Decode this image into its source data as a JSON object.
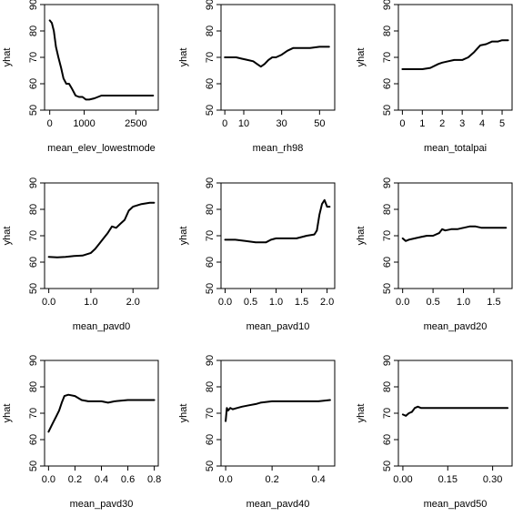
{
  "chart_data": [
    {
      "type": "line",
      "xlabel": "mean_elev_lowestmode",
      "ylabel": "yhat",
      "xlim": [
        -150,
        3150
      ],
      "ylim": [
        50,
        90
      ],
      "xticks": [
        0,
        1000,
        2500
      ],
      "yticks": [
        50,
        60,
        70,
        80,
        90
      ],
      "grid": false,
      "series": [
        {
          "x": [
            0,
            60,
            120,
            180,
            250,
            330,
            400,
            480,
            560,
            650,
            750,
            850,
            950,
            1050,
            1150,
            1300,
            1500,
            1800,
            2200,
            2600,
            3000
          ],
          "y": [
            84,
            83,
            80,
            74,
            70,
            66,
            62,
            60,
            60,
            58,
            55.5,
            55,
            55,
            54,
            54,
            54.5,
            55.5,
            55.5,
            55.5,
            55.5,
            55.5
          ]
        }
      ]
    },
    {
      "type": "line",
      "xlabel": "mean_rh98",
      "ylabel": "yhat",
      "xlim": [
        -2,
        58
      ],
      "ylim": [
        50,
        90
      ],
      "xticks": [
        0,
        10,
        30,
        50
      ],
      "yticks": [
        50,
        60,
        70,
        80,
        90
      ],
      "grid": false,
      "series": [
        {
          "x": [
            0,
            3,
            6,
            9,
            12,
            15,
            17,
            19,
            21,
            23,
            25,
            27,
            30,
            33,
            36,
            40,
            45,
            50,
            55
          ],
          "y": [
            70,
            70,
            70,
            69.5,
            69,
            68.5,
            67.5,
            66.5,
            67.5,
            69,
            70,
            70,
            71,
            72.5,
            73.5,
            73.5,
            73.5,
            74,
            74
          ]
        }
      ]
    },
    {
      "type": "line",
      "xlabel": "mean_totalpai",
      "ylabel": "yhat",
      "xlim": [
        -0.2,
        5.5
      ],
      "ylim": [
        50,
        90
      ],
      "xticks": [
        0,
        1,
        2,
        3,
        4,
        5
      ],
      "yticks": [
        50,
        60,
        70,
        80,
        90
      ],
      "grid": false,
      "series": [
        {
          "x": [
            0,
            0.3,
            0.6,
            1.0,
            1.4,
            1.8,
            2.0,
            2.3,
            2.6,
            3.0,
            3.3,
            3.6,
            3.9,
            4.2,
            4.5,
            4.8,
            5.0,
            5.3
          ],
          "y": [
            65.5,
            65.5,
            65.5,
            65.5,
            66,
            67.5,
            68,
            68.5,
            69,
            69,
            70,
            72,
            74.5,
            75,
            76,
            76,
            76.5,
            76.5
          ]
        }
      ]
    },
    {
      "type": "line",
      "xlabel": "mean_pavd0",
      "ylabel": "yhat",
      "xlim": [
        -0.1,
        2.6
      ],
      "ylim": [
        50,
        90
      ],
      "xticks": [
        0.0,
        1.0,
        2.0
      ],
      "xtick_labels": [
        "0.0",
        "1.0",
        "2.0"
      ],
      "yticks": [
        50,
        60,
        70,
        80,
        90
      ],
      "grid": false,
      "series": [
        {
          "x": [
            0,
            0.2,
            0.4,
            0.6,
            0.8,
            1.0,
            1.1,
            1.2,
            1.3,
            1.4,
            1.5,
            1.6,
            1.7,
            1.8,
            1.9,
            2.0,
            2.2,
            2.4,
            2.5
          ],
          "y": [
            62,
            61.8,
            62,
            62.3,
            62.5,
            63.5,
            65,
            67,
            69,
            71,
            73.5,
            73,
            74.5,
            76,
            79.5,
            81,
            82,
            82.5,
            82.5
          ]
        }
      ]
    },
    {
      "type": "line",
      "xlabel": "mean_pavd10",
      "ylabel": "yhat",
      "xlim": [
        -0.08,
        2.15
      ],
      "ylim": [
        50,
        90
      ],
      "xticks": [
        0.0,
        0.5,
        1.0,
        1.5,
        2.0
      ],
      "xtick_labels": [
        "0.0",
        "0.5",
        "1.0",
        "1.5",
        "2.0"
      ],
      "yticks": [
        50,
        60,
        70,
        80,
        90
      ],
      "grid": false,
      "series": [
        {
          "x": [
            0,
            0.2,
            0.4,
            0.6,
            0.8,
            0.9,
            1.0,
            1.2,
            1.4,
            1.6,
            1.75,
            1.8,
            1.85,
            1.9,
            1.95,
            2.0,
            2.05
          ],
          "y": [
            68.5,
            68.5,
            68,
            67.5,
            67.5,
            68.5,
            69,
            69,
            69,
            70,
            70.5,
            72,
            78,
            82,
            83.5,
            81,
            81
          ]
        }
      ]
    },
    {
      "type": "line",
      "xlabel": "mean_pavd20",
      "ylabel": "yhat",
      "xlim": [
        -0.07,
        1.8
      ],
      "ylim": [
        50,
        90
      ],
      "xticks": [
        0.0,
        0.5,
        1.0,
        1.5
      ],
      "xtick_labels": [
        "0.0",
        "0.5",
        "1.0",
        "1.5"
      ],
      "yticks": [
        50,
        60,
        70,
        80,
        90
      ],
      "grid": false,
      "series": [
        {
          "x": [
            0,
            0.05,
            0.1,
            0.2,
            0.3,
            0.4,
            0.5,
            0.6,
            0.65,
            0.7,
            0.8,
            0.9,
            1.0,
            1.1,
            1.2,
            1.3,
            1.5,
            1.7
          ],
          "y": [
            69,
            68,
            68.5,
            69,
            69.5,
            70,
            70,
            71,
            72.5,
            72,
            72.5,
            72.5,
            73,
            73.5,
            73.5,
            73,
            73,
            73
          ]
        }
      ]
    },
    {
      "type": "line",
      "xlabel": "mean_pavd30",
      "ylabel": "yhat",
      "xlim": [
        -0.03,
        0.83
      ],
      "ylim": [
        50,
        90
      ],
      "xticks": [
        0.0,
        0.2,
        0.4,
        0.6,
        0.8
      ],
      "xtick_labels": [
        "0.0",
        "0.2",
        "0.4",
        "0.6",
        "0.8"
      ],
      "yticks": [
        50,
        60,
        70,
        80,
        90
      ],
      "grid": false,
      "series": [
        {
          "x": [
            0,
            0.03,
            0.06,
            0.08,
            0.1,
            0.12,
            0.15,
            0.2,
            0.25,
            0.3,
            0.35,
            0.4,
            0.45,
            0.5,
            0.6,
            0.7,
            0.8
          ],
          "y": [
            63,
            66,
            69,
            71,
            74,
            76.5,
            77,
            76.5,
            75,
            74.5,
            74.5,
            74.5,
            74,
            74.5,
            75,
            75,
            75
          ]
        }
      ]
    },
    {
      "type": "line",
      "xlabel": "mean_pavd40",
      "ylabel": "yhat",
      "xlim": [
        -0.02,
        0.47
      ],
      "ylim": [
        50,
        90
      ],
      "xticks": [
        0.0,
        0.2,
        0.4
      ],
      "xtick_labels": [
        "0.0",
        "0.2",
        "0.4"
      ],
      "yticks": [
        50,
        60,
        70,
        80,
        90
      ],
      "grid": false,
      "series": [
        {
          "x": [
            0,
            0.005,
            0.01,
            0.02,
            0.03,
            0.05,
            0.07,
            0.1,
            0.13,
            0.15,
            0.2,
            0.25,
            0.3,
            0.35,
            0.4,
            0.45
          ],
          "y": [
            67,
            72,
            71,
            72,
            71.5,
            72,
            72.5,
            73,
            73.5,
            74,
            74.5,
            74.5,
            74.5,
            74.5,
            74.5,
            75
          ]
        }
      ]
    },
    {
      "type": "line",
      "xlabel": "mean_pavd50",
      "ylabel": "yhat",
      "xlim": [
        -0.015,
        0.365
      ],
      "ylim": [
        50,
        90
      ],
      "xticks": [
        0.0,
        0.15,
        0.3
      ],
      "xtick_labels": [
        "0.00",
        "0.15",
        "0.30"
      ],
      "yticks": [
        50,
        60,
        70,
        80,
        90
      ],
      "grid": false,
      "series": [
        {
          "x": [
            0,
            0.01,
            0.02,
            0.03,
            0.04,
            0.05,
            0.06,
            0.08,
            0.1,
            0.15,
            0.2,
            0.25,
            0.3,
            0.35
          ],
          "y": [
            69.5,
            69,
            70,
            70.5,
            72,
            72.5,
            72,
            72,
            72,
            72,
            72,
            72,
            72,
            72
          ]
        }
      ]
    }
  ]
}
